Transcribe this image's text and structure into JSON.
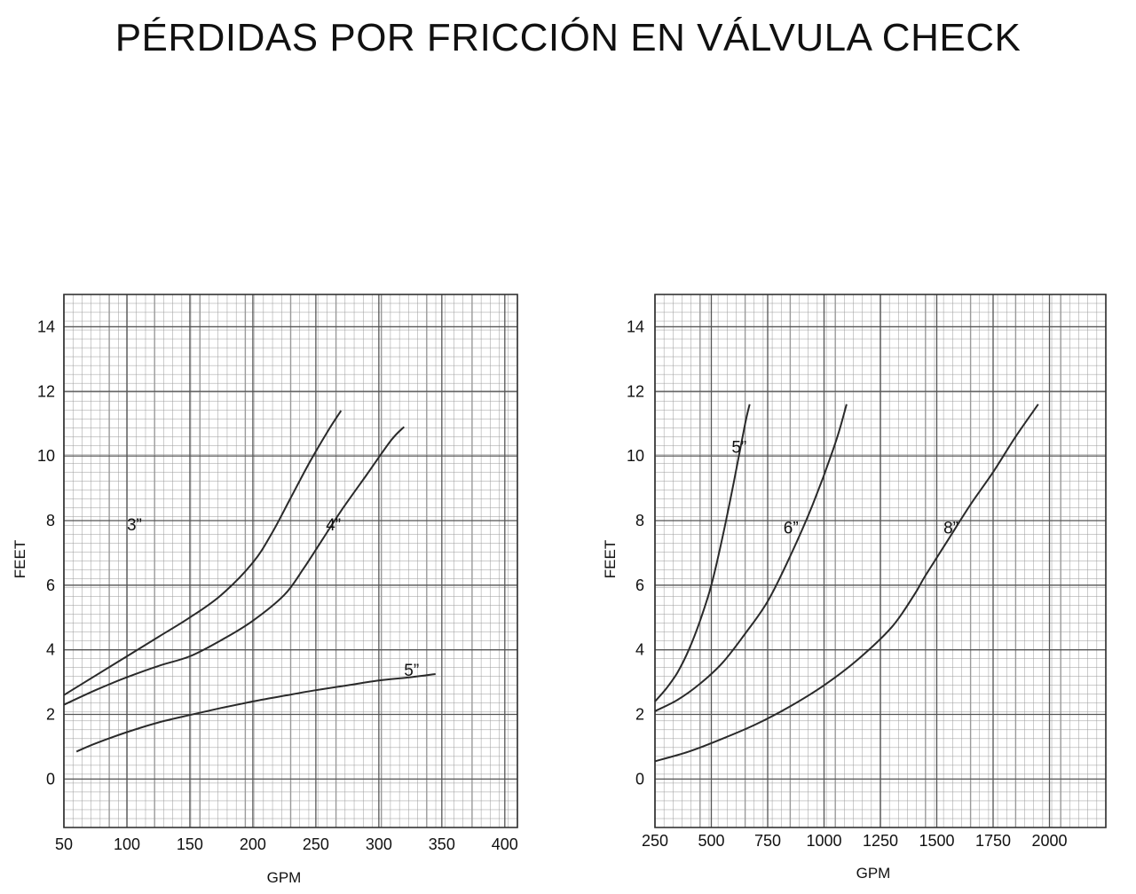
{
  "title": "PÉRDIDAS POR FRICCIÓN EN VÁLVULA CHECK",
  "chart_data": [
    {
      "type": "line",
      "xlabel": "GPM",
      "ylabel": "FEET",
      "xlim": [
        50,
        410
      ],
      "ylim": [
        -1.5,
        15
      ],
      "xticks": [
        50,
        100,
        150,
        200,
        250,
        300,
        350,
        400
      ],
      "yticks": [
        0,
        2,
        4,
        6,
        8,
        10,
        12,
        14
      ],
      "grid": true,
      "series": [
        {
          "name": "3”",
          "label_at": [
            100,
            7.7
          ],
          "points": [
            [
              50,
              2.6
            ],
            [
              75,
              3.2
            ],
            [
              100,
              3.8
            ],
            [
              125,
              4.4
            ],
            [
              150,
              5.0
            ],
            [
              175,
              5.7
            ],
            [
              200,
              6.7
            ],
            [
              215,
              7.6
            ],
            [
              230,
              8.7
            ],
            [
              245,
              9.8
            ],
            [
              260,
              10.8
            ],
            [
              270,
              11.4
            ]
          ]
        },
        {
          "name": "4”",
          "label_at": [
            258,
            7.7
          ],
          "points": [
            [
              50,
              2.3
            ],
            [
              75,
              2.75
            ],
            [
              100,
              3.15
            ],
            [
              125,
              3.5
            ],
            [
              150,
              3.8
            ],
            [
              175,
              4.3
            ],
            [
              200,
              4.9
            ],
            [
              225,
              5.7
            ],
            [
              240,
              6.5
            ],
            [
              255,
              7.4
            ],
            [
              270,
              8.3
            ],
            [
              290,
              9.4
            ],
            [
              310,
              10.5
            ],
            [
              320,
              10.9
            ]
          ]
        },
        {
          "name": "5”",
          "label_at": [
            320,
            3.2
          ],
          "points": [
            [
              60,
              0.85
            ],
            [
              75,
              1.1
            ],
            [
              100,
              1.45
            ],
            [
              125,
              1.75
            ],
            [
              150,
              1.98
            ],
            [
              175,
              2.2
            ],
            [
              200,
              2.4
            ],
            [
              225,
              2.58
            ],
            [
              250,
              2.75
            ],
            [
              275,
              2.9
            ],
            [
              300,
              3.05
            ],
            [
              325,
              3.15
            ],
            [
              345,
              3.25
            ]
          ]
        }
      ]
    },
    {
      "type": "line",
      "xlabel": "GPM",
      "ylabel": "FEET",
      "xlim": [
        250,
        2250
      ],
      "ylim": [
        -1.5,
        15
      ],
      "xticks": [
        250,
        500,
        750,
        1000,
        1250,
        1500,
        1750,
        2000
      ],
      "yticks": [
        0,
        2,
        4,
        6,
        8,
        10,
        12,
        14
      ],
      "grid": true,
      "series": [
        {
          "name": "5”",
          "label_at": [
            590,
            10.1
          ],
          "points": [
            [
              250,
              2.4
            ],
            [
              300,
              2.8
            ],
            [
              350,
              3.3
            ],
            [
              400,
              4.0
            ],
            [
              450,
              4.9
            ],
            [
              500,
              6.0
            ],
            [
              550,
              7.5
            ],
            [
              600,
              9.2
            ],
            [
              650,
              11.0
            ],
            [
              670,
              11.6
            ]
          ]
        },
        {
          "name": "6”",
          "label_at": [
            820,
            7.6
          ],
          "points": [
            [
              250,
              2.1
            ],
            [
              350,
              2.45
            ],
            [
              450,
              2.95
            ],
            [
              550,
              3.6
            ],
            [
              650,
              4.5
            ],
            [
              750,
              5.5
            ],
            [
              850,
              6.9
            ],
            [
              950,
              8.5
            ],
            [
              1050,
              10.4
            ],
            [
              1100,
              11.6
            ]
          ]
        },
        {
          "name": "8”",
          "label_at": [
            1530,
            7.6
          ],
          "points": [
            [
              250,
              0.55
            ],
            [
              400,
              0.85
            ],
            [
              550,
              1.25
            ],
            [
              700,
              1.7
            ],
            [
              850,
              2.25
            ],
            [
              1000,
              2.9
            ],
            [
              1150,
              3.7
            ],
            [
              1300,
              4.7
            ],
            [
              1400,
              5.7
            ],
            [
              1450,
              6.3
            ],
            [
              1550,
              7.4
            ],
            [
              1650,
              8.5
            ],
            [
              1750,
              9.5
            ],
            [
              1850,
              10.6
            ],
            [
              1950,
              11.6
            ]
          ]
        }
      ]
    }
  ]
}
